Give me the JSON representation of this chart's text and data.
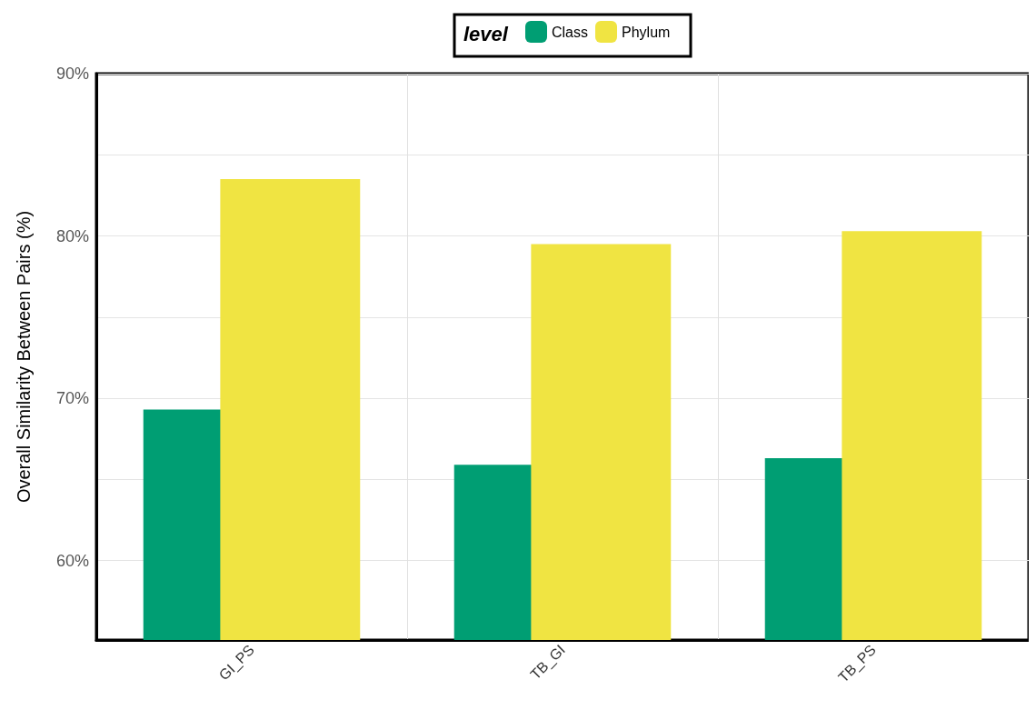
{
  "chart_data": {
    "type": "bar",
    "ylabel": "Overall Similarity Between Pairs (%)",
    "legend_title": "level",
    "categories": [
      "GI_PS",
      "TB_GI",
      "TB_PS"
    ],
    "series": [
      {
        "name": "Class",
        "color": "#009e73",
        "values": [
          69.3,
          65.9,
          66.3
        ]
      },
      {
        "name": "Phylum",
        "color": "#f0e442",
        "values": [
          83.5,
          79.5,
          80.3
        ]
      }
    ],
    "ylim": [
      55.1,
      90
    ],
    "yticks": [
      {
        "value": 60,
        "label": "60%"
      },
      {
        "value": 65,
        "label": null
      },
      {
        "value": 70,
        "label": "70%"
      },
      {
        "value": 75,
        "label": null
      },
      {
        "value": 80,
        "label": "80%"
      },
      {
        "value": 85,
        "label": null
      },
      {
        "value": 90,
        "label": "90%"
      }
    ],
    "grid": true,
    "legend": "top"
  }
}
